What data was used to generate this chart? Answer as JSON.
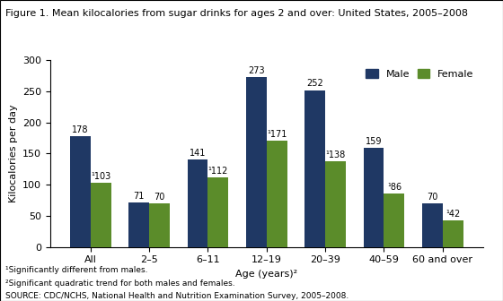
{
  "title": "Figure 1. Mean kilocalories from sugar drinks for ages 2 and over: United States, 2005–2008",
  "categories": [
    "All",
    "2–5",
    "6–11",
    "12–19",
    "20–39",
    "40–59",
    "60 and over"
  ],
  "male_values": [
    178,
    71,
    141,
    273,
    252,
    159,
    70
  ],
  "female_values": [
    103,
    70,
    112,
    171,
    138,
    86,
    42
  ],
  "female_sig_diff": [
    true,
    false,
    true,
    true,
    true,
    true,
    true
  ],
  "male_color": "#1F3864",
  "female_color": "#5B8C2A",
  "ylabel": "Kilocalories per day",
  "xlabel": "Age (years)²",
  "ylim": [
    0,
    300
  ],
  "yticks": [
    0,
    50,
    100,
    150,
    200,
    250,
    300
  ],
  "footnote1": "¹Significantly different from males.",
  "footnote2": "²Significant quadratic trend for both males and females.",
  "source": "SOURCE: CDC/NCHS, National Health and Nutrition Examination Survey, 2005–2008.",
  "legend_labels": [
    "Male",
    "Female"
  ],
  "bar_width": 0.35,
  "label_fontsize": 7.0,
  "axis_fontsize": 8.0,
  "tick_fontsize": 8.0,
  "title_fontsize": 8.0,
  "footnote_fontsize": 6.5
}
